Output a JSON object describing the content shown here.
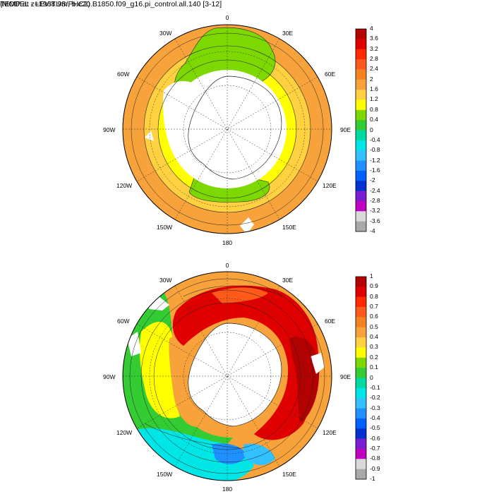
{
  "panels": [
    {
      "title": "TEMP at z=1968.9m, b.e20.B1850.f09_g16.pi_control.all.140 [3-12]",
      "colorbar": {
        "labels": [
          "4",
          "3.6",
          "3.2",
          "2.8",
          "2.4",
          "2",
          "1.6",
          "1.2",
          "0.8",
          "0.4",
          "0",
          "-0.4",
          "-0.8",
          "-1.2",
          "-1.6",
          "-2",
          "-2.4",
          "-2.8",
          "-3.2",
          "-3.6",
          "-4"
        ],
        "colors": [
          "#b30000",
          "#e00000",
          "#ff2a00",
          "#ff5a1a",
          "#f58220",
          "#f7a23a",
          "#ffd040",
          "#ffff00",
          "#7cd800",
          "#33cc33",
          "#00d9a0",
          "#00e6e6",
          "#33c0ff",
          "#1e90ff",
          "#0060ff",
          "#0030d0",
          "#7a1ccf",
          "#c000c0",
          "#d9d9d9",
          "#a9a9a9"
        ]
      }
    },
    {
      "title": "(MODEL - LEVITUS/PHC2)",
      "colorbar": {
        "labels": [
          "1",
          "0.9",
          "0.8",
          "0.7",
          "0.6",
          "0.5",
          "0.4",
          "0.3",
          "0.2",
          "0.1",
          "0",
          "-0.1",
          "-0.2",
          "-0.3",
          "-0.4",
          "-0.5",
          "-0.6",
          "-0.7",
          "-0.8",
          "-0.9",
          "-1"
        ],
        "colors": [
          "#b30000",
          "#e00000",
          "#ff2a00",
          "#ff5a1a",
          "#f58220",
          "#f7a23a",
          "#ffd040",
          "#ffff00",
          "#7cd800",
          "#33cc33",
          "#00d9a0",
          "#00e6e6",
          "#33c0ff",
          "#1e90ff",
          "#0060ff",
          "#0030d0",
          "#7a1ccf",
          "#c000c0",
          "#d9d9d9",
          "#a9a9a9"
        ]
      }
    }
  ],
  "longitude_labels": {
    "l0": "0",
    "l30e": "30E",
    "l60e": "60E",
    "l90e": "90E",
    "l120e": "120E",
    "l150e": "150E",
    "l180": "180",
    "l150w": "150W",
    "l120w": "120W",
    "l90w": "90W",
    "l60w": "60W",
    "l30w": "30W"
  }
}
